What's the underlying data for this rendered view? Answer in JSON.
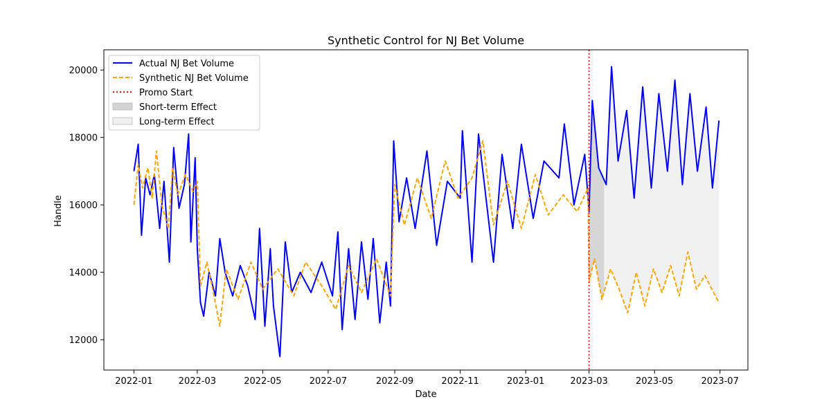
{
  "chart_data": {
    "type": "line",
    "title": "Synthetic Control for NJ Bet Volume",
    "xlabel": "Date",
    "ylabel": "Handle",
    "x_range": [
      "2021-12-04",
      "2023-07-27"
    ],
    "ylim": [
      11100,
      20600
    ],
    "x_ticks": [
      "2022-01",
      "2022-03",
      "2022-05",
      "2022-07",
      "2022-09",
      "2022-11",
      "2023-01",
      "2023-03",
      "2023-05",
      "2023-07"
    ],
    "y_ticks": [
      12000,
      14000,
      16000,
      18000,
      20000
    ],
    "grid": false,
    "legend_position": "upper left",
    "series": [
      {
        "name": "Actual NJ Bet Volume",
        "color": "#0000ff",
        "style": "solid",
        "points": [
          [
            "2022-01-01",
            17000
          ],
          [
            "2022-01-05",
            17800
          ],
          [
            "2022-01-08",
            15100
          ],
          [
            "2022-01-12",
            16800
          ],
          [
            "2022-01-16",
            16300
          ],
          [
            "2022-01-20",
            16900
          ],
          [
            "2022-01-25",
            15300
          ],
          [
            "2022-01-29",
            16700
          ],
          [
            "2022-02-03",
            14300
          ],
          [
            "2022-02-07",
            17700
          ],
          [
            "2022-02-12",
            15900
          ],
          [
            "2022-02-17",
            16600
          ],
          [
            "2022-02-21",
            18100
          ],
          [
            "2022-02-23",
            14900
          ],
          [
            "2022-02-27",
            17400
          ],
          [
            "2022-03-01",
            14700
          ],
          [
            "2022-03-04",
            13100
          ],
          [
            "2022-03-07",
            12700
          ],
          [
            "2022-03-12",
            14000
          ],
          [
            "2022-03-18",
            13300
          ],
          [
            "2022-03-22",
            15000
          ],
          [
            "2022-03-27",
            14000
          ],
          [
            "2022-04-03",
            13300
          ],
          [
            "2022-04-10",
            14200
          ],
          [
            "2022-04-17",
            13600
          ],
          [
            "2022-04-24",
            12600
          ],
          [
            "2022-04-28",
            15300
          ],
          [
            "2022-05-03",
            12400
          ],
          [
            "2022-05-08",
            14700
          ],
          [
            "2022-05-11",
            13000
          ],
          [
            "2022-05-17",
            11500
          ],
          [
            "2022-05-22",
            14900
          ],
          [
            "2022-05-28",
            13400
          ],
          [
            "2022-06-05",
            14000
          ],
          [
            "2022-06-15",
            13400
          ],
          [
            "2022-06-25",
            14300
          ],
          [
            "2022-07-05",
            13300
          ],
          [
            "2022-07-10",
            15200
          ],
          [
            "2022-07-14",
            12300
          ],
          [
            "2022-07-20",
            14700
          ],
          [
            "2022-07-26",
            12600
          ],
          [
            "2022-08-01",
            14900
          ],
          [
            "2022-08-07",
            13200
          ],
          [
            "2022-08-12",
            15000
          ],
          [
            "2022-08-18",
            12500
          ],
          [
            "2022-08-24",
            14300
          ],
          [
            "2022-08-28",
            13000
          ],
          [
            "2022-08-31",
            17900
          ],
          [
            "2022-09-05",
            15500
          ],
          [
            "2022-09-12",
            16800
          ],
          [
            "2022-09-20",
            15300
          ],
          [
            "2022-10-01",
            17600
          ],
          [
            "2022-10-10",
            14800
          ],
          [
            "2022-10-20",
            16700
          ],
          [
            "2022-11-01",
            16200
          ],
          [
            "2022-11-03",
            18200
          ],
          [
            "2022-11-12",
            14300
          ],
          [
            "2022-11-18",
            18100
          ],
          [
            "2022-12-02",
            14300
          ],
          [
            "2022-12-10",
            17500
          ],
          [
            "2022-12-20",
            15300
          ],
          [
            "2022-12-28",
            17800
          ],
          [
            "2023-01-08",
            15600
          ],
          [
            "2023-01-18",
            17300
          ],
          [
            "2023-02-01",
            16800
          ],
          [
            "2023-02-06",
            18400
          ],
          [
            "2023-02-15",
            16000
          ],
          [
            "2023-02-25",
            17500
          ],
          [
            "2023-03-01",
            15800
          ],
          [
            "2023-03-04",
            19100
          ],
          [
            "2023-03-10",
            17100
          ],
          [
            "2023-03-17",
            16600
          ],
          [
            "2023-03-22",
            20100
          ],
          [
            "2023-03-28",
            17300
          ],
          [
            "2023-04-05",
            18800
          ],
          [
            "2023-04-12",
            16200
          ],
          [
            "2023-04-20",
            19500
          ],
          [
            "2023-04-28",
            16500
          ],
          [
            "2023-05-05",
            19300
          ],
          [
            "2023-05-13",
            17000
          ],
          [
            "2023-05-20",
            19700
          ],
          [
            "2023-05-27",
            16600
          ],
          [
            "2023-06-03",
            19300
          ],
          [
            "2023-06-10",
            17000
          ],
          [
            "2023-06-18",
            18900
          ],
          [
            "2023-06-24",
            16500
          ],
          [
            "2023-06-30",
            18500
          ]
        ]
      },
      {
        "name": "Synthetic NJ Bet Volume",
        "color": "#ffa500",
        "style": "dashed",
        "points": [
          [
            "2022-01-01",
            16000
          ],
          [
            "2022-01-05",
            17200
          ],
          [
            "2022-01-09",
            16500
          ],
          [
            "2022-01-14",
            17100
          ],
          [
            "2022-01-18",
            16200
          ],
          [
            "2022-01-22",
            17600
          ],
          [
            "2022-01-27",
            16000
          ],
          [
            "2022-02-02",
            15300
          ],
          [
            "2022-02-06",
            17100
          ],
          [
            "2022-02-11",
            16300
          ],
          [
            "2022-02-18",
            16900
          ],
          [
            "2022-02-25",
            16400
          ],
          [
            "2022-03-01",
            16700
          ],
          [
            "2022-03-04",
            13600
          ],
          [
            "2022-03-10",
            14300
          ],
          [
            "2022-03-16",
            13400
          ],
          [
            "2022-03-22",
            12400
          ],
          [
            "2022-03-28",
            14100
          ],
          [
            "2022-04-08",
            13200
          ],
          [
            "2022-04-20",
            14300
          ],
          [
            "2022-05-01",
            13500
          ],
          [
            "2022-05-15",
            14100
          ],
          [
            "2022-05-30",
            13300
          ],
          [
            "2022-06-10",
            14300
          ],
          [
            "2022-06-25",
            13600
          ],
          [
            "2022-07-08",
            12900
          ],
          [
            "2022-07-20",
            14200
          ],
          [
            "2022-08-01",
            13400
          ],
          [
            "2022-08-15",
            14400
          ],
          [
            "2022-08-28",
            13300
          ],
          [
            "2022-09-01",
            16600
          ],
          [
            "2022-09-10",
            15400
          ],
          [
            "2022-09-22",
            16800
          ],
          [
            "2022-10-05",
            15600
          ],
          [
            "2022-10-18",
            17300
          ],
          [
            "2022-10-30",
            16200
          ],
          [
            "2022-11-12",
            16800
          ],
          [
            "2022-11-22",
            17900
          ],
          [
            "2022-12-02",
            15400
          ],
          [
            "2022-12-15",
            16700
          ],
          [
            "2022-12-28",
            15300
          ],
          [
            "2023-01-10",
            16900
          ],
          [
            "2023-01-22",
            15700
          ],
          [
            "2023-02-05",
            16300
          ],
          [
            "2023-02-18",
            15800
          ],
          [
            "2023-02-28",
            16500
          ],
          [
            "2023-03-01",
            13700
          ],
          [
            "2023-03-06",
            14400
          ],
          [
            "2023-03-13",
            13200
          ],
          [
            "2023-03-21",
            14100
          ],
          [
            "2023-03-29",
            13500
          ],
          [
            "2023-04-06",
            12800
          ],
          [
            "2023-04-14",
            14000
          ],
          [
            "2023-04-22",
            13000
          ],
          [
            "2023-04-30",
            14100
          ],
          [
            "2023-05-08",
            13400
          ],
          [
            "2023-05-16",
            14200
          ],
          [
            "2023-05-24",
            13300
          ],
          [
            "2023-06-01",
            14600
          ],
          [
            "2023-06-09",
            13500
          ],
          [
            "2023-06-17",
            13900
          ],
          [
            "2023-06-25",
            13400
          ],
          [
            "2023-06-30",
            13100
          ]
        ]
      }
    ],
    "promo_start": {
      "name": "Promo Start",
      "date": "2023-03-01",
      "color": "#ff0000",
      "style": "dotted"
    },
    "short_term_effect": {
      "name": "Short-term Effect",
      "start": "2023-03-01",
      "end": "2023-03-15",
      "color": "#d3d3d3"
    },
    "long_term_effect": {
      "name": "Long-term Effect",
      "start": "2023-03-01",
      "end": "2023-06-30",
      "color": "#f0f0f0"
    }
  }
}
